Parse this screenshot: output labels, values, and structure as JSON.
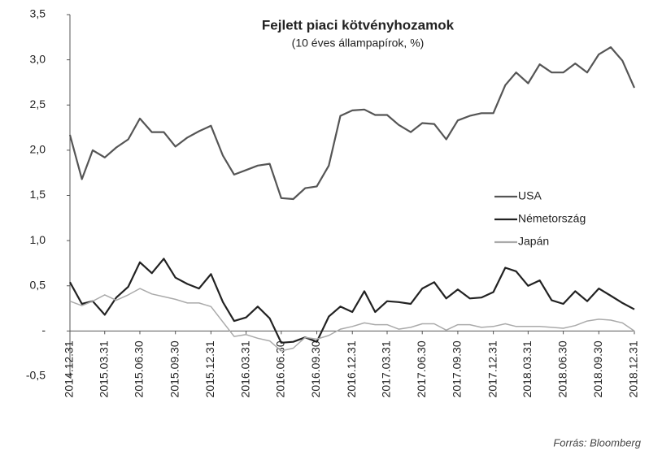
{
  "chart_data": {
    "type": "line",
    "title": "Fejlett piaci kötvényhozamok",
    "subtitle": "(10 éves állampapírok, %)",
    "source": "Forrás: Bloomberg",
    "x": [
      "2014.12.31",
      "2015.01.31",
      "2015.02.28",
      "2015.03.31",
      "2015.04.30",
      "2015.05.31",
      "2015.06.30",
      "2015.07.31",
      "2015.08.31",
      "2015.09.30",
      "2015.10.31",
      "2015.11.30",
      "2015.12.31",
      "2016.01.31",
      "2016.02.29",
      "2016.03.31",
      "2016.04.30",
      "2016.05.31",
      "2016.06.30",
      "2016.07.31",
      "2016.08.31",
      "2016.09.30",
      "2016.10.31",
      "2016.11.30",
      "2016.12.31",
      "2017.01.31",
      "2017.02.28",
      "2017.03.31",
      "2017.04.30",
      "2017.05.31",
      "2017.06.30",
      "2017.07.31",
      "2017.08.31",
      "2017.09.30",
      "2017.10.31",
      "2017.11.30",
      "2017.12.31",
      "2018.01.31",
      "2018.02.28",
      "2018.03.31",
      "2018.04.30",
      "2018.05.31",
      "2018.06.30",
      "2018.07.31",
      "2018.08.31",
      "2018.09.30",
      "2018.10.31",
      "2018.11.30",
      "2018.12.31"
    ],
    "xlim": [
      "2014.12.31",
      "2018.12.31"
    ],
    "xticks": [
      "2014.12.31",
      "2015.03.31",
      "2015.06.30",
      "2015.09.30",
      "2015.12.31",
      "2016.03.31",
      "2016.06.30",
      "2016.09.30",
      "2016.12.31",
      "2017.03.31",
      "2017.06.30",
      "2017.09.30",
      "2017.12.31",
      "2018.03.31",
      "2018.06.30",
      "2018.09.30",
      "2018.12.31"
    ],
    "ylim": [
      -0.5,
      3.5
    ],
    "yticks": [
      {
        "value": -0.5,
        "label": "-0,5"
      },
      {
        "value": 0,
        "label": "-"
      },
      {
        "value": 0.5,
        "label": "0,5"
      },
      {
        "value": 1,
        "label": "1,0"
      },
      {
        "value": 1.5,
        "label": "1,5"
      },
      {
        "value": 2,
        "label": "2,0"
      },
      {
        "value": 2.5,
        "label": "2,5"
      },
      {
        "value": 3,
        "label": "3,0"
      },
      {
        "value": 3.5,
        "label": "3,5"
      }
    ],
    "grid": false,
    "legend": "right",
    "series": [
      {
        "name": "USA",
        "color": "#555555",
        "values": [
          2.17,
          1.68,
          2.0,
          1.92,
          2.03,
          2.12,
          2.35,
          2.2,
          2.2,
          2.04,
          2.14,
          2.21,
          2.27,
          1.94,
          1.73,
          1.78,
          1.83,
          1.85,
          1.47,
          1.46,
          1.58,
          1.6,
          1.83,
          2.38,
          2.44,
          2.45,
          2.39,
          2.39,
          2.28,
          2.2,
          2.3,
          2.29,
          2.12,
          2.33,
          2.38,
          2.41,
          2.41,
          2.72,
          2.86,
          2.74,
          2.95,
          2.86,
          2.86,
          2.96,
          2.86,
          3.06,
          3.14,
          2.99,
          2.69
        ]
      },
      {
        "name": "Németország",
        "color": "#222222",
        "values": [
          0.54,
          0.3,
          0.33,
          0.18,
          0.37,
          0.49,
          0.76,
          0.64,
          0.8,
          0.59,
          0.52,
          0.47,
          0.63,
          0.32,
          0.11,
          0.15,
          0.27,
          0.14,
          -0.13,
          -0.12,
          -0.07,
          -0.12,
          0.16,
          0.27,
          0.21,
          0.44,
          0.21,
          0.33,
          0.32,
          0.3,
          0.47,
          0.54,
          0.36,
          0.46,
          0.36,
          0.37,
          0.43,
          0.7,
          0.66,
          0.5,
          0.56,
          0.34,
          0.3,
          0.44,
          0.33,
          0.47,
          0.39,
          0.31,
          0.24
        ]
      },
      {
        "name": "Japán",
        "color": "#aaaaaa",
        "values": [
          0.33,
          0.28,
          0.33,
          0.4,
          0.34,
          0.4,
          0.47,
          0.41,
          0.38,
          0.35,
          0.31,
          0.31,
          0.27,
          0.1,
          -0.06,
          -0.04,
          -0.08,
          -0.11,
          -0.22,
          -0.19,
          -0.07,
          -0.09,
          -0.05,
          0.02,
          0.05,
          0.09,
          0.07,
          0.07,
          0.02,
          0.04,
          0.08,
          0.08,
          0.01,
          0.07,
          0.07,
          0.04,
          0.05,
          0.08,
          0.05,
          0.05,
          0.05,
          0.04,
          0.03,
          0.06,
          0.11,
          0.13,
          0.12,
          0.09,
          0.0
        ]
      }
    ]
  }
}
